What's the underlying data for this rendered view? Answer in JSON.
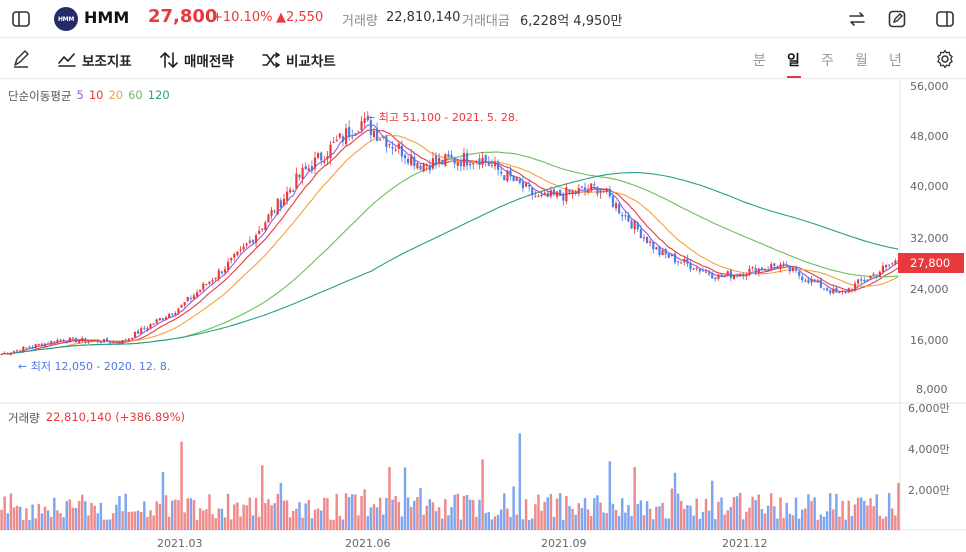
{
  "header": {
    "logo_text": "HMM",
    "stock_name": "HMM",
    "price": "27,800",
    "change_pct": "+10.10%",
    "change_amt": "▲2,550",
    "volume_label": "거래량",
    "volume_value": "22,810,140",
    "amount_label": "거래대금",
    "amount_value": "6,228억 4,950만"
  },
  "toolbar": {
    "indicators": "보조지표",
    "strategy": "매매전략",
    "compare": "비교차트",
    "periods": [
      "분",
      "일",
      "주",
      "월",
      "년"
    ],
    "active_period": "일"
  },
  "legend": {
    "ma_title": "단순이동평균",
    "ma_periods": [
      "5",
      "10",
      "20",
      "60",
      "120"
    ],
    "ma_colors": [
      "#8e5ee0",
      "#e9393c",
      "#f3a33c",
      "#6cbf5c",
      "#2a9d8f"
    ],
    "volume_label": "거래량",
    "volume_value": "22,810,140 (+386.89%)"
  },
  "annotations": {
    "high": "← 최고 51,100 - 2021. 5. 28.",
    "low": "← 최저 12,050 - 2020. 12. 8."
  },
  "current_price_tag": "27,800",
  "colors": {
    "up": "#e9393c",
    "down": "#4b7be5",
    "vol_up": "#ef8a8a",
    "vol_down": "#7ea6f0"
  },
  "chart_data": {
    "type": "candlestick",
    "price_axis_ticks": [
      "56,000",
      "48,000",
      "40,000",
      "32,000",
      "24,000",
      "16,000",
      "8,000"
    ],
    "volume_axis_ticks": [
      "6,000만",
      "4,000만",
      "2,000만"
    ],
    "x_ticks": [
      "2021.03",
      "2021.06",
      "2021.09",
      "2021.12"
    ],
    "ylim": [
      4000,
      57000
    ],
    "close_series": [
      {
        "date": "2020.12.08",
        "close": 12050
      },
      {
        "date": "2021.01",
        "close": 14500
      },
      {
        "date": "2021.02",
        "close": 14000
      },
      {
        "date": "2021.03",
        "close": 20000
      },
      {
        "date": "2021.04",
        "close": 29000
      },
      {
        "date": "2021.05",
        "close": 42000
      },
      {
        "date": "2021.05.28",
        "close": 51100
      },
      {
        "date": "2021.06",
        "close": 44000
      },
      {
        "date": "2021.07",
        "close": 45000
      },
      {
        "date": "2021.08",
        "close": 38000
      },
      {
        "date": "2021.09",
        "close": 40000
      },
      {
        "date": "2021.10",
        "close": 29000
      },
      {
        "date": "2021.11",
        "close": 25000
      },
      {
        "date": "2021.12",
        "close": 27000
      },
      {
        "date": "2022.01",
        "close": 22000
      },
      {
        "date": "current",
        "close": 27800
      }
    ]
  }
}
